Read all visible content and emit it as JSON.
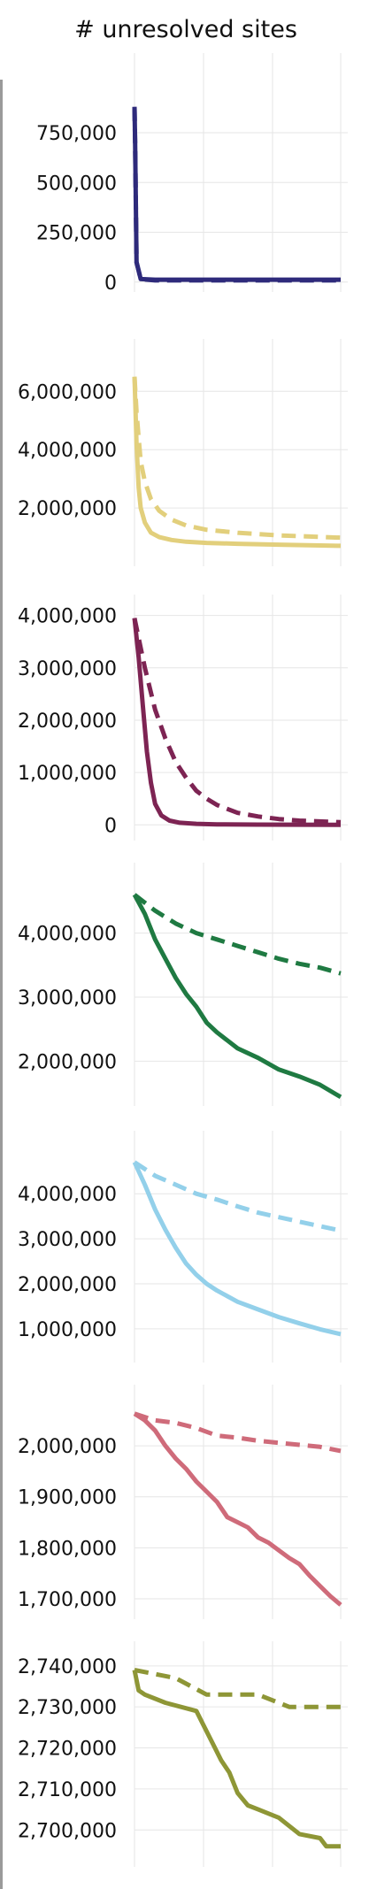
{
  "header": {
    "title": "# unresolved sites"
  },
  "chart_data": [
    {
      "type": "line",
      "color": "#2e2a7b",
      "yticks": [
        0,
        250000,
        500000,
        750000
      ],
      "ytick_labels": [
        "0",
        "250,000",
        "500,000",
        "750,000"
      ],
      "ylim": [
        -50000,
        1150000
      ],
      "series": [
        {
          "style": "solid",
          "x": [
            0,
            0.003,
            0.01,
            0.03,
            0.1,
            1.0
          ],
          "values": [
            880000,
            700000,
            100000,
            15000,
            12000,
            12000
          ]
        },
        {
          "style": "dashed",
          "x": [
            0,
            0.003,
            0.01,
            0.03,
            0.1,
            1.0
          ],
          "values": [
            880000,
            700000,
            100000,
            15000,
            8000,
            8000
          ]
        }
      ]
    },
    {
      "type": "line",
      "color": "#e2cf7c",
      "yticks": [
        2000000,
        4000000,
        6000000
      ],
      "ytick_labels": [
        "2,000,000",
        "4,000,000",
        "6,000,000"
      ],
      "ylim": [
        0,
        7800000
      ],
      "series": [
        {
          "style": "solid",
          "x": [
            0,
            0.01,
            0.02,
            0.03,
            0.05,
            0.08,
            0.12,
            0.18,
            0.25,
            0.35,
            0.5,
            0.7,
            1.0
          ],
          "values": [
            6500000,
            4200000,
            2700000,
            2000000,
            1500000,
            1150000,
            1000000,
            900000,
            840000,
            800000,
            770000,
            740000,
            700000
          ]
        },
        {
          "style": "dashed",
          "x": [
            0,
            0.01,
            0.02,
            0.03,
            0.05,
            0.08,
            0.12,
            0.18,
            0.25,
            0.35,
            0.5,
            0.7,
            1.0
          ],
          "values": [
            6500000,
            5300000,
            4400000,
            3600000,
            2900000,
            2300000,
            1900000,
            1600000,
            1400000,
            1250000,
            1150000,
            1060000,
            980000
          ]
        }
      ]
    },
    {
      "type": "line",
      "color": "#7d2453",
      "yticks": [
        0,
        1000000,
        2000000,
        3000000,
        4000000
      ],
      "ytick_labels": [
        "0",
        "1,000,000",
        "2,000,000",
        "3,000,000",
        "4,000,000"
      ],
      "ylim": [
        -300000,
        4400000
      ],
      "series": [
        {
          "style": "solid",
          "x": [
            0,
            0.02,
            0.04,
            0.06,
            0.08,
            0.1,
            0.13,
            0.17,
            0.22,
            0.3,
            0.4,
            0.6,
            1.0
          ],
          "values": [
            3950000,
            3200000,
            2300000,
            1400000,
            800000,
            400000,
            180000,
            80000,
            40000,
            20000,
            10000,
            5000,
            0
          ]
        },
        {
          "style": "dashed",
          "x": [
            0,
            0.05,
            0.1,
            0.15,
            0.2,
            0.25,
            0.3,
            0.35,
            0.4,
            0.5,
            0.6,
            0.7,
            0.8,
            1.0
          ],
          "values": [
            3950000,
            3000000,
            2200000,
            1650000,
            1200000,
            900000,
            650000,
            500000,
            380000,
            230000,
            160000,
            110000,
            80000,
            50000
          ]
        }
      ]
    },
    {
      "type": "line",
      "color": "#1f7a42",
      "yticks": [
        2000000,
        3000000,
        4000000
      ],
      "ytick_labels": [
        "2,000,000",
        "3,000,000",
        "4,000,000"
      ],
      "ylim": [
        1300000,
        5100000
      ],
      "series": [
        {
          "style": "solid",
          "x": [
            0,
            0.05,
            0.1,
            0.15,
            0.2,
            0.25,
            0.3,
            0.35,
            0.4,
            0.5,
            0.6,
            0.7,
            0.8,
            0.9,
            1.0
          ],
          "values": [
            4600000,
            4300000,
            3900000,
            3600000,
            3300000,
            3050000,
            2850000,
            2600000,
            2450000,
            2200000,
            2050000,
            1870000,
            1760000,
            1630000,
            1440000
          ]
        },
        {
          "style": "dashed",
          "x": [
            0,
            0.1,
            0.2,
            0.3,
            0.4,
            0.5,
            0.6,
            0.7,
            0.8,
            0.9,
            1.0
          ],
          "values": [
            4600000,
            4350000,
            4150000,
            4000000,
            3900000,
            3800000,
            3700000,
            3600000,
            3520000,
            3460000,
            3370000
          ]
        }
      ]
    },
    {
      "type": "line",
      "color": "#93d0ea",
      "yticks": [
        1000000,
        2000000,
        3000000,
        4000000
      ],
      "ytick_labels": [
        "1,000,000",
        "2,000,000",
        "3,000,000",
        "4,000,000"
      ],
      "ylim": [
        250000,
        5400000
      ],
      "series": [
        {
          "style": "solid",
          "x": [
            0,
            0.05,
            0.1,
            0.15,
            0.2,
            0.25,
            0.3,
            0.35,
            0.4,
            0.5,
            0.6,
            0.7,
            0.8,
            0.9,
            1.0
          ],
          "values": [
            4700000,
            4200000,
            3650000,
            3200000,
            2800000,
            2450000,
            2200000,
            2000000,
            1850000,
            1600000,
            1430000,
            1260000,
            1120000,
            990000,
            880000
          ]
        },
        {
          "style": "dashed",
          "x": [
            0,
            0.1,
            0.2,
            0.3,
            0.4,
            0.5,
            0.6,
            0.7,
            0.8,
            0.9,
            1.0
          ],
          "values": [
            4700000,
            4400000,
            4200000,
            4000000,
            3870000,
            3720000,
            3580000,
            3480000,
            3380000,
            3280000,
            3180000
          ]
        }
      ]
    },
    {
      "type": "line",
      "color": "#cf6b7a",
      "yticks": [
        1700000,
        1800000,
        1900000,
        2000000
      ],
      "ytick_labels": [
        "1,700,000",
        "1,800,000",
        "1,900,000",
        "2,000,000"
      ],
      "ylim": [
        1660000,
        2120000
      ],
      "series": [
        {
          "style": "solid",
          "x": [
            0,
            0.05,
            0.1,
            0.15,
            0.2,
            0.25,
            0.3,
            0.35,
            0.4,
            0.45,
            0.5,
            0.55,
            0.6,
            0.65,
            0.7,
            0.75,
            0.8,
            0.85,
            0.9,
            0.95,
            1.0
          ],
          "values": [
            2063000,
            2050000,
            2030000,
            2000000,
            1975000,
            1955000,
            1930000,
            1910000,
            1890000,
            1860000,
            1850000,
            1840000,
            1820000,
            1810000,
            1795000,
            1780000,
            1768000,
            1745000,
            1725000,
            1705000,
            1688000
          ]
        },
        {
          "style": "dashed",
          "x": [
            0,
            0.1,
            0.2,
            0.3,
            0.4,
            0.5,
            0.6,
            0.7,
            0.8,
            0.9,
            1.0
          ],
          "values": [
            2063000,
            2050000,
            2045000,
            2035000,
            2020000,
            2016000,
            2010000,
            2006000,
            2002000,
            1998000,
            1990000
          ]
        }
      ]
    },
    {
      "type": "line",
      "color": "#8e9636",
      "yticks": [
        2700000,
        2710000,
        2720000,
        2730000,
        2740000
      ],
      "ytick_labels": [
        "2,700,000",
        "2,710,000",
        "2,720,000",
        "2,730,000",
        "2,740,000"
      ],
      "ylim": [
        2691000,
        2746000
      ],
      "series": [
        {
          "style": "solid",
          "x": [
            0,
            0.02,
            0.05,
            0.15,
            0.3,
            0.33,
            0.36,
            0.39,
            0.42,
            0.46,
            0.5,
            0.55,
            0.6,
            0.7,
            0.8,
            0.9,
            0.93,
            1.0
          ],
          "values": [
            2739000,
            2734000,
            2733000,
            2731000,
            2729000,
            2726000,
            2723000,
            2720000,
            2717000,
            2714000,
            2709000,
            2706000,
            2705000,
            2703000,
            2699000,
            2698000,
            2696000,
            2696000
          ]
        },
        {
          "style": "dashed",
          "x": [
            0,
            0.2,
            0.35,
            0.6,
            0.75,
            1.0
          ],
          "values": [
            2739000,
            2737000,
            2733000,
            2733000,
            2730000,
            2730000
          ]
        }
      ]
    }
  ]
}
